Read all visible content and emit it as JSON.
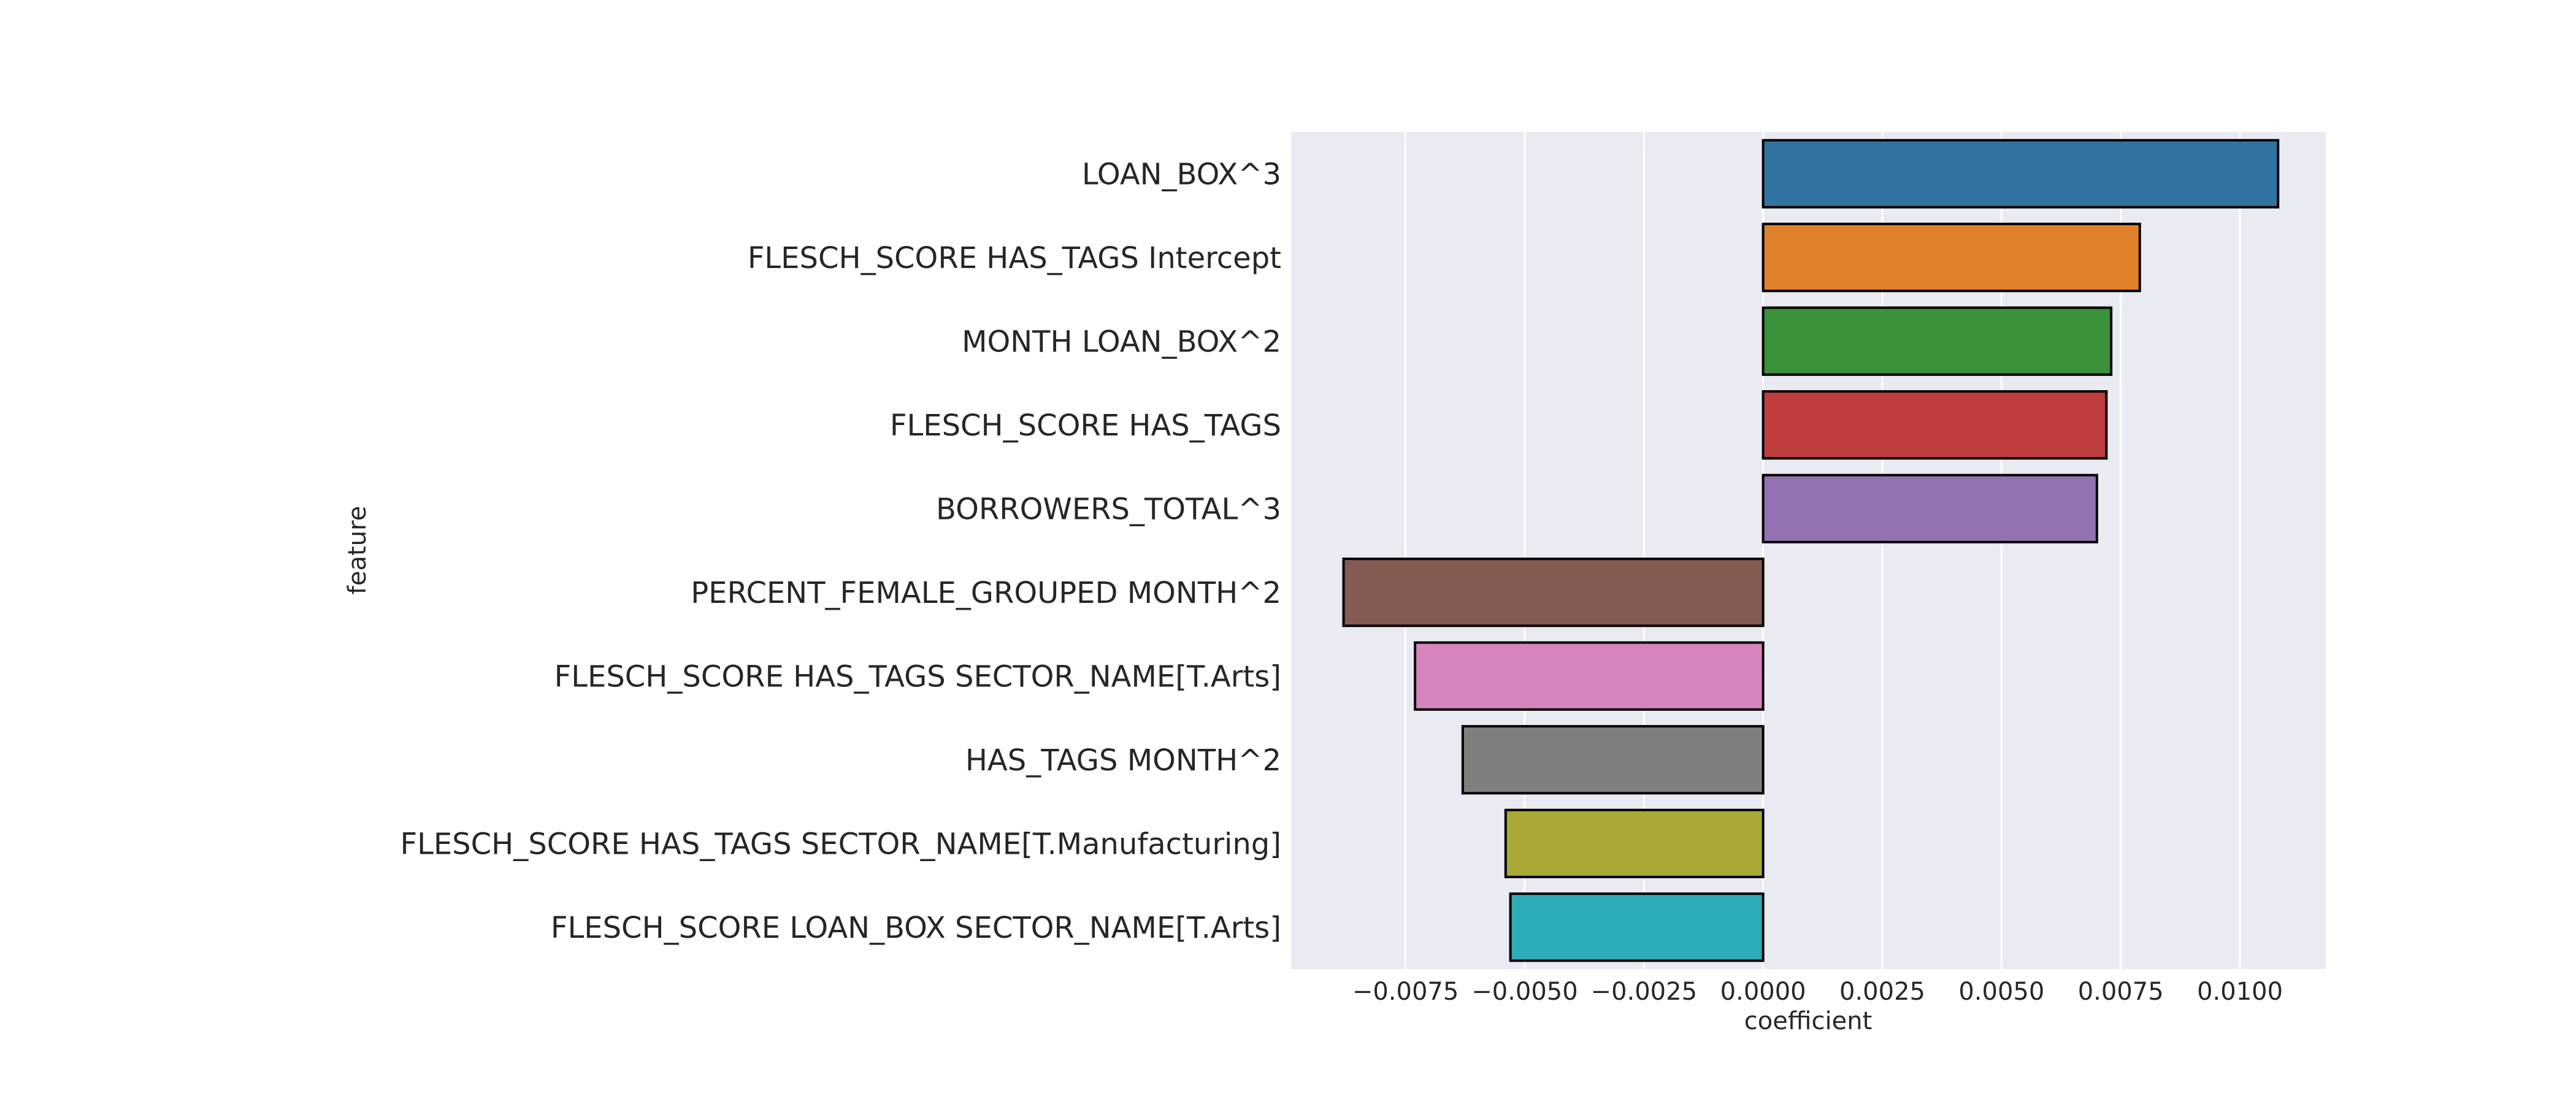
{
  "chart_data": {
    "type": "bar",
    "orientation": "horizontal",
    "xlabel": "coefficient",
    "ylabel": "feature",
    "xlim": [
      -0.0099,
      0.0118
    ],
    "xticks": [
      -0.0075,
      -0.005,
      -0.0025,
      0.0,
      0.0025,
      0.005,
      0.0075,
      0.01
    ],
    "xtick_labels": [
      "−0.0075",
      "−0.0050",
      "−0.0025",
      "0.0000",
      "0.0025",
      "0.0050",
      "0.0075",
      "0.0100"
    ],
    "grid": true,
    "background": "#eaeaf2",
    "categories": [
      "LOAN_BOX^3",
      "FLESCH_SCORE HAS_TAGS Intercept",
      "MONTH LOAN_BOX^2",
      "FLESCH_SCORE HAS_TAGS",
      "BORROWERS_TOTAL^3",
      "PERCENT_FEMALE_GROUPED MONTH^2",
      "FLESCH_SCORE HAS_TAGS SECTOR_NAME[T.Arts]",
      "HAS_TAGS MONTH^2",
      "FLESCH_SCORE HAS_TAGS SECTOR_NAME[T.Manufacturing]",
      "FLESCH_SCORE LOAN_BOX SECTOR_NAME[T.Arts]"
    ],
    "values": [
      0.0108,
      0.0079,
      0.0073,
      0.0072,
      0.007,
      -0.0088,
      -0.0073,
      -0.0063,
      -0.0054,
      -0.0053
    ],
    "colors": [
      "#3274a1",
      "#e1812c",
      "#3a923a",
      "#c03d3e",
      "#9372b2",
      "#845b53",
      "#d684bd",
      "#7f7f7f",
      "#a9aa35",
      "#2eabb8"
    ]
  }
}
